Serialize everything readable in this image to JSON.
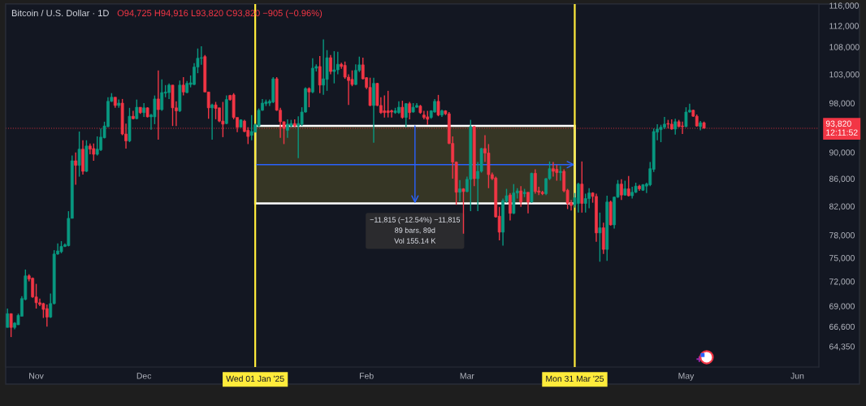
{
  "chart_data": {
    "type": "candlestick",
    "title": "Bitcoin / U.S. Dollar · 1D",
    "subtitle": "O94,725 H94,916 L93,820 C93,820 −905 (−0.96%)",
    "log": true,
    "x": [
      "2024-10-24",
      "2024-10-25",
      "2024-10-26",
      "2024-10-27",
      "2024-10-28",
      "2024-10-29",
      "2024-10-30",
      "2024-10-31",
      "2024-11-01",
      "2024-11-02",
      "2024-11-03",
      "2024-11-04",
      "2024-11-05",
      "2024-11-06",
      "2024-11-07",
      "2024-11-08",
      "2024-11-09",
      "2024-11-10",
      "2024-11-11",
      "2024-11-12",
      "2024-11-13",
      "2024-11-14",
      "2024-11-15",
      "2024-11-16",
      "2024-11-17",
      "2024-11-18",
      "2024-11-19",
      "2024-11-20",
      "2024-11-21",
      "2024-11-22",
      "2024-11-23",
      "2024-11-24",
      "2024-11-25",
      "2024-11-26",
      "2024-11-27",
      "2024-11-28",
      "2024-11-29",
      "2024-11-30",
      "2024-12-01",
      "2024-12-02",
      "2024-12-03",
      "2024-12-04",
      "2024-12-05",
      "2024-12-06",
      "2024-12-07",
      "2024-12-08",
      "2024-12-09",
      "2024-12-10",
      "2024-12-11",
      "2024-12-12",
      "2024-12-13",
      "2024-12-14",
      "2024-12-15",
      "2024-12-16",
      "2024-12-17",
      "2024-12-18",
      "2024-12-19",
      "2024-12-20",
      "2024-12-21",
      "2024-12-22",
      "2024-12-23",
      "2024-12-24",
      "2024-12-25",
      "2024-12-26",
      "2024-12-27",
      "2024-12-28",
      "2024-12-29",
      "2024-12-30",
      "2024-12-31",
      "2025-01-01",
      "2025-01-02",
      "2025-01-03",
      "2025-01-04",
      "2025-01-05",
      "2025-01-06",
      "2025-01-07",
      "2025-01-08",
      "2025-01-09",
      "2025-01-10",
      "2025-01-11",
      "2025-01-12",
      "2025-01-13",
      "2025-01-14",
      "2025-01-15",
      "2025-01-16",
      "2025-01-17",
      "2025-01-18",
      "2025-01-19",
      "2025-01-20",
      "2025-01-21",
      "2025-01-22",
      "2025-01-23",
      "2025-01-24",
      "2025-01-25",
      "2025-01-26",
      "2025-01-27",
      "2025-01-28",
      "2025-01-29",
      "2025-01-30",
      "2025-01-31",
      "2025-02-01",
      "2025-02-02",
      "2025-02-03",
      "2025-02-04",
      "2025-02-05",
      "2025-02-06",
      "2025-02-07",
      "2025-02-08",
      "2025-02-09",
      "2025-02-10",
      "2025-02-11",
      "2025-02-12",
      "2025-02-13",
      "2025-02-14",
      "2025-02-15",
      "2025-02-16",
      "2025-02-17",
      "2025-02-18",
      "2025-02-19",
      "2025-02-20",
      "2025-02-21",
      "2025-02-22",
      "2025-02-23",
      "2025-02-24",
      "2025-02-25",
      "2025-02-26",
      "2025-02-27",
      "2025-02-28",
      "2025-03-01",
      "2025-03-02",
      "2025-03-03",
      "2025-03-04",
      "2025-03-05",
      "2025-03-06",
      "2025-03-07",
      "2025-03-08",
      "2025-03-09",
      "2025-03-10",
      "2025-03-11",
      "2025-03-12",
      "2025-03-13",
      "2025-03-14",
      "2025-03-15",
      "2025-03-16",
      "2025-03-17",
      "2025-03-18",
      "2025-03-19",
      "2025-03-20",
      "2025-03-21",
      "2025-03-22",
      "2025-03-23",
      "2025-03-24",
      "2025-03-25",
      "2025-03-26",
      "2025-03-27",
      "2025-03-28",
      "2025-03-29",
      "2025-03-30",
      "2025-03-31",
      "2025-04-01",
      "2025-04-02",
      "2025-04-03",
      "2025-04-04",
      "2025-04-05",
      "2025-04-06",
      "2025-04-07",
      "2025-04-08",
      "2025-04-09",
      "2025-04-10",
      "2025-04-11",
      "2025-04-12",
      "2025-04-13",
      "2025-04-14",
      "2025-04-15",
      "2025-04-16",
      "2025-04-17",
      "2025-04-18",
      "2025-04-19",
      "2025-04-20",
      "2025-04-21",
      "2025-04-22",
      "2025-04-23",
      "2025-04-24",
      "2025-04-25",
      "2025-04-26",
      "2025-04-27",
      "2025-04-28",
      "2025-04-29",
      "2025-04-30",
      "2025-05-01",
      "2025-05-02",
      "2025-05-03",
      "2025-05-04",
      "2025-05-05",
      "2025-05-06"
    ],
    "ohlc": [
      [
        66500,
        68700,
        66500,
        68100
      ],
      [
        68100,
        68100,
        65400,
        66500
      ],
      [
        66500,
        67100,
        66300,
        67000
      ],
      [
        66800,
        68100,
        66800,
        67900
      ],
      [
        67800,
        70200,
        67800,
        69900
      ],
      [
        69800,
        73500,
        69700,
        72700
      ],
      [
        72700,
        72900,
        72000,
        72300
      ],
      [
        72400,
        72500,
        70000,
        70100
      ],
      [
        70100,
        71700,
        68700,
        69400
      ],
      [
        69400,
        69900,
        69000,
        69200
      ],
      [
        69300,
        69400,
        67600,
        68600
      ],
      [
        68700,
        69200,
        66600,
        67700
      ],
      [
        67700,
        70500,
        67600,
        69300
      ],
      [
        69300,
        76000,
        69200,
        75500
      ],
      [
        75500,
        76900,
        75400,
        75900
      ],
      [
        75800,
        77200,
        75600,
        76500
      ],
      [
        76500,
        76900,
        76400,
        76700
      ],
      [
        76600,
        81300,
        76500,
        80300
      ],
      [
        80300,
        89500,
        80300,
        88700
      ],
      [
        88700,
        90000,
        85100,
        88000
      ],
      [
        88000,
        93300,
        86300,
        90500
      ],
      [
        90500,
        91900,
        86600,
        87100
      ],
      [
        87100,
        91900,
        87000,
        91000
      ],
      [
        91000,
        91400,
        89700,
        90500
      ],
      [
        90600,
        91400,
        88700,
        89700
      ],
      [
        89700,
        92500,
        89500,
        90500
      ],
      [
        90400,
        93800,
        90200,
        92400
      ],
      [
        92300,
        94900,
        92200,
        94200
      ],
      [
        94100,
        99000,
        94000,
        98300
      ],
      [
        98300,
        99700,
        98200,
        99000
      ],
      [
        99000,
        99000,
        97200,
        97600
      ],
      [
        97600,
        98600,
        97200,
        98000
      ],
      [
        98000,
        98700,
        92700,
        92900
      ],
      [
        92900,
        94600,
        90600,
        91800
      ],
      [
        91800,
        97200,
        91600,
        95800
      ],
      [
        95800,
        96700,
        95300,
        95400
      ],
      [
        95400,
        98600,
        95300,
        97300
      ],
      [
        97300,
        97300,
        96200,
        96400
      ],
      [
        96400,
        98000,
        95700,
        97200
      ],
      [
        97200,
        97300,
        95600,
        95700
      ],
      [
        95700,
        96200,
        93600,
        96000
      ],
      [
        95700,
        99300,
        94500,
        98700
      ],
      [
        98700,
        103700,
        92000,
        96900
      ],
      [
        96900,
        102100,
        96700,
        99800
      ],
      [
        99700,
        101100,
        99000,
        99900
      ],
      [
        99800,
        101400,
        98700,
        101100
      ],
      [
        101100,
        101100,
        94200,
        97200
      ],
      [
        97200,
        98300,
        94200,
        96700
      ],
      [
        96700,
        101900,
        96500,
        101100
      ],
      [
        101100,
        102500,
        99300,
        99900
      ],
      [
        99800,
        101800,
        99700,
        101400
      ],
      [
        101200,
        102800,
        100700,
        101500
      ],
      [
        101200,
        105000,
        101100,
        104300
      ],
      [
        104300,
        107700,
        103200,
        105900
      ],
      [
        105900,
        108100,
        104700,
        106000
      ],
      [
        106200,
        106500,
        99900,
        99900
      ],
      [
        99900,
        99900,
        95400,
        97200
      ],
      [
        97200,
        97900,
        92000,
        97700
      ],
      [
        97700,
        98200,
        95300,
        97100
      ],
      [
        97200,
        97200,
        94800,
        95000
      ],
      [
        95000,
        98200,
        92400,
        94500
      ],
      [
        94600,
        99300,
        94500,
        98600
      ],
      [
        99300,
        99400,
        98400,
        98600
      ],
      [
        99400,
        99700,
        95300,
        95600
      ],
      [
        95600,
        95600,
        93200,
        94000
      ],
      [
        94000,
        95300,
        94000,
        95200
      ],
      [
        95000,
        95200,
        93200,
        93300
      ],
      [
        93500,
        94000,
        91300,
        92500
      ],
      [
        92700,
        96000,
        91900,
        93300
      ],
      [
        93200,
        94600,
        93200,
        94400
      ],
      [
        94200,
        97100,
        94100,
        96800
      ],
      [
        96800,
        98700,
        96700,
        98000
      ],
      [
        97900,
        98600,
        97500,
        98200
      ],
      [
        98000,
        98600,
        97500,
        98300
      ],
      [
        98200,
        102500,
        98000,
        102200
      ],
      [
        102200,
        102500,
        96700,
        96800
      ],
      [
        96800,
        97200,
        92300,
        94900
      ],
      [
        94900,
        94900,
        91300,
        93800
      ],
      [
        93500,
        95300,
        92300,
        94500
      ],
      [
        94200,
        95200,
        94000,
        94600
      ],
      [
        94600,
        95300,
        94000,
        94200
      ],
      [
        94200,
        95800,
        89100,
        94600
      ],
      [
        94500,
        97300,
        94200,
        96500
      ],
      [
        96500,
        100700,
        96400,
        100500
      ],
      [
        100500,
        100700,
        97300,
        99900
      ],
      [
        99900,
        105900,
        99700,
        104100
      ],
      [
        104100,
        104800,
        103500,
        104400
      ],
      [
        104400,
        106300,
        99700,
        101100
      ],
      [
        101100,
        109400,
        99400,
        102200
      ],
      [
        102100,
        107400,
        100100,
        106000
      ],
      [
        106000,
        106500,
        103000,
        103500
      ],
      [
        103500,
        107200,
        101400,
        103800
      ],
      [
        103800,
        107100,
        103000,
        104800
      ],
      [
        104800,
        105100,
        104000,
        104400
      ],
      [
        104600,
        105300,
        102200,
        102500
      ],
      [
        102500,
        103000,
        97700,
        101900
      ],
      [
        102100,
        103700,
        100900,
        101200
      ],
      [
        101200,
        104800,
        101100,
        103700
      ],
      [
        103700,
        106200,
        103400,
        104700
      ],
      [
        104700,
        106000,
        102100,
        102200
      ],
      [
        102400,
        102500,
        100400,
        100700
      ],
      [
        100700,
        102400,
        97500,
        97600
      ],
      [
        97600,
        102400,
        91500,
        101400
      ],
      [
        101400,
        101500,
        97500,
        97600
      ],
      [
        97600,
        99000,
        96200,
        96400
      ],
      [
        96700,
        99300,
        95600,
        96400
      ],
      [
        96700,
        100100,
        95600,
        96400
      ],
      [
        96700,
        96900,
        95600,
        96500
      ],
      [
        96400,
        97200,
        96200,
        96700
      ],
      [
        96400,
        98300,
        96200,
        97300
      ],
      [
        97300,
        98400,
        95400,
        95600
      ],
      [
        95600,
        98000,
        94000,
        97900
      ],
      [
        97900,
        98200,
        95300,
        96400
      ],
      [
        96500,
        98000,
        96400,
        97300
      ],
      [
        97300,
        98000,
        97200,
        97600
      ],
      [
        97500,
        97700,
        96200,
        96400
      ],
      [
        96000,
        96700,
        95300,
        95600
      ],
      [
        95700,
        96700,
        94400,
        95300
      ],
      [
        95600,
        96800,
        95400,
        96700
      ],
      [
        96500,
        98700,
        96400,
        98300
      ],
      [
        98300,
        99400,
        95800,
        96000
      ],
      [
        96000,
        96900,
        95700,
        96700
      ],
      [
        96700,
        96800,
        96000,
        96200
      ],
      [
        96200,
        96500,
        91300,
        91400
      ],
      [
        91400,
        92500,
        86000,
        88500
      ],
      [
        88500,
        88600,
        82200,
        84000
      ],
      [
        84000,
        85800,
        82700,
        84500
      ],
      [
        84500,
        84600,
        78200,
        84100
      ],
      [
        84100,
        86300,
        84000,
        85900
      ],
      [
        85900,
        95200,
        81300,
        94100
      ],
      [
        94100,
        94200,
        84900,
        86000
      ],
      [
        86000,
        88500,
        81300,
        87100
      ],
      [
        87100,
        90700,
        86900,
        90600
      ],
      [
        90600,
        92700,
        88500,
        89900
      ],
      [
        89900,
        91300,
        84600,
        86600
      ],
      [
        86600,
        86900,
        85800,
        86000
      ],
      [
        86100,
        86300,
        80400,
        80500
      ],
      [
        80600,
        81900,
        77300,
        78400
      ],
      [
        78400,
        83100,
        76600,
        82800
      ],
      [
        82700,
        84500,
        82500,
        83500
      ],
      [
        83600,
        83900,
        80000,
        81000
      ],
      [
        81000,
        85200,
        80900,
        83900
      ],
      [
        83900,
        84600,
        83100,
        84200
      ],
      [
        84200,
        84900,
        81900,
        82600
      ],
      [
        83800,
        84500,
        83300,
        84000
      ],
      [
        84000,
        84000,
        81000,
        82600
      ],
      [
        82600,
        86900,
        82500,
        86800
      ],
      [
        86800,
        87400,
        83800,
        84100
      ],
      [
        84200,
        84800,
        83600,
        84000
      ],
      [
        84000,
        84200,
        83600,
        83800
      ],
      [
        83800,
        86100,
        83600,
        86000
      ],
      [
        86000,
        88600,
        85800,
        87500
      ],
      [
        87500,
        88500,
        86300,
        87100
      ],
      [
        87400,
        88100,
        85700,
        86900
      ],
      [
        86900,
        87900,
        85700,
        87100
      ],
      [
        87100,
        87400,
        84000,
        84200
      ],
      [
        84300,
        84500,
        81600,
        82400
      ],
      [
        82500,
        82900,
        81400,
        82100
      ],
      [
        82200,
        83900,
        81800,
        83200
      ],
      [
        82400,
        85400,
        81100,
        85200
      ],
      [
        85200,
        88600,
        81100,
        82400
      ],
      [
        82400,
        83800,
        81100,
        83100
      ],
      [
        83100,
        84600,
        81700,
        83900
      ],
      [
        83900,
        84000,
        82500,
        83400
      ],
      [
        83400,
        83800,
        77100,
        78300
      ],
      [
        78300,
        81100,
        74500,
        79000
      ],
      [
        79000,
        79700,
        75500,
        76100
      ],
      [
        76100,
        83500,
        74600,
        82600
      ],
      [
        82600,
        82800,
        79300,
        79400
      ],
      [
        79400,
        83400,
        78900,
        83300
      ],
      [
        83300,
        85800,
        83200,
        85200
      ],
      [
        85200,
        85900,
        82900,
        83600
      ],
      [
        83600,
        85700,
        83500,
        84500
      ],
      [
        84500,
        86400,
        83400,
        83500
      ],
      [
        83500,
        84800,
        83100,
        84000
      ],
      [
        84000,
        85400,
        83900,
        84900
      ],
      [
        84900,
        85100,
        84200,
        84500
      ],
      [
        84300,
        85200,
        84200,
        85100
      ],
      [
        84900,
        85400,
        83900,
        85200
      ],
      [
        85100,
        88500,
        84900,
        87500
      ],
      [
        87400,
        93800,
        87000,
        93300
      ],
      [
        93200,
        94500,
        91900,
        93700
      ],
      [
        93600,
        94400,
        91600,
        94000
      ],
      [
        94000,
        95700,
        93700,
        94500
      ],
      [
        94600,
        95200,
        93800,
        94500
      ],
      [
        94500,
        95300,
        93600,
        93700
      ],
      [
        93700,
        95400,
        92800,
        94900
      ],
      [
        94900,
        95200,
        94000,
        94100
      ],
      [
        94200,
        94900,
        92900,
        94100
      ],
      [
        94100,
        97300,
        94000,
        96500
      ],
      [
        96500,
        97900,
        96400,
        96800
      ],
      [
        96800,
        96900,
        95700,
        95800
      ],
      [
        95800,
        96100,
        94100,
        94200
      ],
      [
        94100,
        95000,
        93500,
        94725
      ],
      [
        94725,
        94916,
        93820,
        93820
      ]
    ],
    "colors": [
      "#089981",
      "#f23645",
      "#089981",
      "#089981",
      "#089981",
      "#089981",
      "#f23645",
      "#f23645",
      "#f23645",
      "#f23645",
      "#f23645",
      "#f23645",
      "#089981",
      "#089981",
      "#089981",
      "#089981",
      "#089981",
      "#089981",
      "#089981",
      "#f23645",
      "#089981",
      "#f23645",
      "#089981",
      "#f23645",
      "#f23645",
      "#089981",
      "#089981",
      "#089981",
      "#089981",
      "#089981",
      "#f23645",
      "#089981",
      "#f23645",
      "#f23645",
      "#089981",
      "#f23645",
      "#089981",
      "#f23645",
      "#089981",
      "#f23645",
      "#089981",
      "#089981",
      "#f23645",
      "#089981",
      "#089981",
      "#089981",
      "#f23645",
      "#f23645",
      "#089981",
      "#f23645",
      "#089981",
      "#089981",
      "#089981",
      "#089981",
      "#089981",
      "#f23645",
      "#f23645",
      "#089981",
      "#f23645",
      "#f23645",
      "#f23645",
      "#089981",
      "#f23645",
      "#f23645",
      "#f23645",
      "#089981",
      "#f23645",
      "#f23645",
      "#089981",
      "#089981",
      "#089981",
      "#089981",
      "#089981",
      "#089981",
      "#089981",
      "#f23645",
      "#f23645",
      "#f23645",
      "#089981",
      "#089981",
      "#f23645",
      "#089981",
      "#089981",
      "#089981",
      "#f23645",
      "#089981",
      "#089981",
      "#f23645",
      "#089981",
      "#089981",
      "#f23645",
      "#089981",
      "#089981",
      "#f23645",
      "#f23645",
      "#f23645",
      "#f23645",
      "#089981",
      "#089981",
      "#f23645",
      "#f23645",
      "#f23645",
      "#089981",
      "#f23645",
      "#f23645",
      "#f23645",
      "#f23645",
      "#f23645",
      "#089981",
      "#089981",
      "#f23645",
      "#089981",
      "#f23645",
      "#089981",
      "#089981",
      "#f23645",
      "#f23645",
      "#f23645",
      "#089981",
      "#089981",
      "#f23645",
      "#089981",
      "#f23645",
      "#f23645",
      "#f23645",
      "#f23645",
      "#089981",
      "#f23645",
      "#089981",
      "#089981",
      "#f23645",
      "#089981",
      "#089981",
      "#f23645",
      "#f23645",
      "#f23645",
      "#f23645",
      "#f23645",
      "#089981",
      "#089981",
      "#f23645",
      "#089981",
      "#089981",
      "#f23645",
      "#089981",
      "#f23645",
      "#089981",
      "#f23645",
      "#f23645",
      "#f23645",
      "#089981",
      "#089981",
      "#f23645",
      "#f23645",
      "#089981",
      "#f23645",
      "#f23645",
      "#f23645",
      "#089981",
      "#089981",
      "#f23645",
      "#089981",
      "#089981",
      "#f23645",
      "#f23645",
      "#089981",
      "#f23645",
      "#089981",
      "#f23645",
      "#089981",
      "#089981",
      "#f23645",
      "#089981",
      "#f23645",
      "#089981",
      "#089981",
      "#f23645",
      "#089981",
      "#089981",
      "#089981",
      "#089981",
      "#089981",
      "#089981",
      "#089981",
      "#f23645",
      "#f23645",
      "#089981",
      "#f23645",
      "#f23645",
      "#089981",
      "#089981",
      "#f23645",
      "#f23645",
      "#089981",
      "#f23645"
    ],
    "xlim": [
      "2024-10-23T12:00",
      "2025-06-07"
    ],
    "xticks": [
      {
        "value": "2024-11-01",
        "label": "Nov"
      },
      {
        "value": "2024-12-01",
        "label": "Dec"
      },
      {
        "value": "2025-02-01",
        "label": "Feb"
      },
      {
        "value": "2025-03-01",
        "label": "Mar"
      },
      {
        "value": "2025-05-01",
        "label": "May"
      },
      {
        "value": "2025-06-01",
        "label": "Jun"
      }
    ],
    "ylim": [
      62100,
      116300
    ],
    "yticks": [
      {
        "value": 64350,
        "label": "64,350"
      },
      {
        "value": 66600,
        "label": "66,600"
      },
      {
        "value": 69000,
        "label": "69,000"
      },
      {
        "value": 72000,
        "label": "72,000"
      },
      {
        "value": 75000,
        "label": "75,000"
      },
      {
        "value": 78000,
        "label": "78,000"
      },
      {
        "value": 82000,
        "label": "82,000"
      },
      {
        "value": 86000,
        "label": "86,000"
      },
      {
        "value": 90000,
        "label": "90,000"
      },
      {
        "value": 98000,
        "label": "98,000"
      },
      {
        "value": 103000,
        "label": "103,000"
      },
      {
        "value": 108000,
        "label": "108,000"
      },
      {
        "value": 112000,
        "label": "112,000"
      },
      {
        "value": 116000,
        "label": "116,000"
      }
    ],
    "ref_lines": [
      {
        "axis": "x",
        "value": "2025-01-01",
        "label": "Wed 01 Jan '25",
        "color": "#ffeb3b"
      },
      {
        "axis": "x",
        "value": "2025-03-31",
        "label": "Mon 31 Mar '25",
        "color": "#ffeb3b"
      },
      {
        "axis": "y",
        "value": 93820,
        "label": "93,820\n12:11:52",
        "color": "#f23645",
        "line_style": "dotted"
      }
    ],
    "bands": [
      {
        "axis": "y",
        "from": 94218,
        "to": 82403,
        "label": "−11,815 (−12.54%) −11,815\n89 bars, 89d\nVol 155.14 K",
        "color": "#ffeb3b"
      }
    ]
  }
}
